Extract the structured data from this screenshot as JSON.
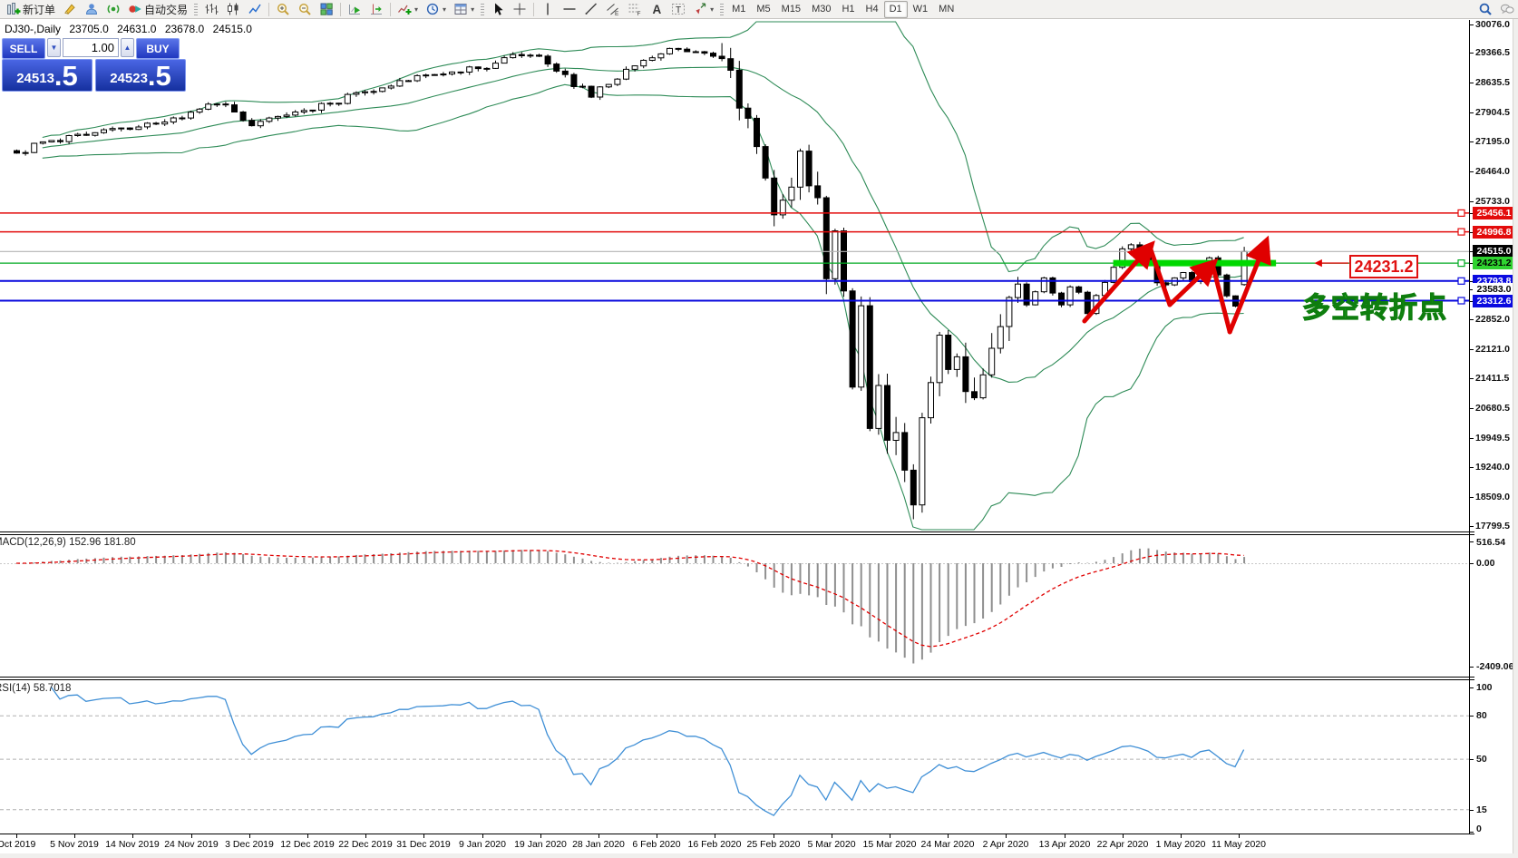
{
  "toolbar": {
    "groups": [
      [
        {
          "name": "new-order",
          "label": "新订单"
        },
        {
          "name": "metaeditor"
        },
        {
          "name": "market"
        },
        {
          "name": "signals"
        },
        {
          "name": "autotrading",
          "label": "自动交易"
        }
      ],
      [
        {
          "name": "bar-chart"
        },
        {
          "name": "candlestick-chart"
        },
        {
          "name": "line-chart"
        }
      ],
      [
        {
          "name": "zoom-in"
        },
        {
          "name": "zoom-out"
        },
        {
          "name": "tile-windows"
        }
      ],
      [
        {
          "name": "auto-scroll"
        },
        {
          "name": "chart-shift"
        }
      ],
      [
        {
          "name": "indicators",
          "dropdown": true
        },
        {
          "name": "periods",
          "dropdown": true
        },
        {
          "name": "templates",
          "dropdown": true
        }
      ],
      [
        {
          "name": "cursor"
        },
        {
          "name": "crosshair"
        }
      ],
      [
        {
          "name": "vertical-line"
        },
        {
          "name": "horizontal-line"
        },
        {
          "name": "trendline"
        },
        {
          "name": "equidistant-channel"
        },
        {
          "name": "fibonacci"
        },
        {
          "name": "text"
        },
        {
          "name": "text-label"
        },
        {
          "name": "arrows",
          "dropdown": true
        }
      ]
    ],
    "timeframes": [
      "M1",
      "M5",
      "M15",
      "M30",
      "H1",
      "H4",
      "D1",
      "W1",
      "MN"
    ],
    "active_timeframe": "D1",
    "right_icons": [
      "search",
      "chat"
    ]
  },
  "chart_header": {
    "symbol": "DJ30-,Daily",
    "open": "23705.0",
    "high": "24631.0",
    "low": "23678.0",
    "close": "24515.0"
  },
  "trade_panel": {
    "sell_label": "SELL",
    "buy_label": "BUY",
    "volume": "1.00",
    "sell_price_main": "24513",
    "sell_price_big": ".5",
    "buy_price_main": "24523",
    "buy_price_big": ".5"
  },
  "price_axis": {
    "ticks": [
      "30076.0",
      "29366.5",
      "28635.5",
      "27904.5",
      "27195.0",
      "26464.0",
      "25733.0",
      "22852.0",
      "22121.0",
      "21411.5",
      "20680.5",
      "19949.5",
      "19240.0",
      "18509.0",
      "17799.5"
    ],
    "markers": [
      {
        "text": "25456.1",
        "price": 25456.1,
        "bg": "#e30b0b",
        "fg": "#ffffff",
        "line": "#e30b0b",
        "width": 1.5,
        "handle": true
      },
      {
        "text": "24996.8",
        "price": 24996.8,
        "bg": "#e30b0b",
        "fg": "#ffffff",
        "line": "#e30b0b",
        "width": 1.5,
        "handle": true
      },
      {
        "text": "24515.0",
        "price": 24515.0,
        "bg": "#000000",
        "fg": "#ffffff",
        "line": "#b4b4b4",
        "width": 1.2,
        "handle": false
      },
      {
        "text": "24231.2",
        "price": 24231.2,
        "bg": "#2fd330",
        "fg": "#000000",
        "line": "#00aa22",
        "width": 1.2,
        "handle": true
      },
      {
        "text": "23793.8",
        "price": 23793.8,
        "bg": "#0a0ae0",
        "fg": "#ffffff",
        "line": "#0808dd",
        "width": 2,
        "handle": true
      },
      {
        "text": "23583.0",
        "price": 23583.0,
        "bg": "#ffffff",
        "fg": "#000000",
        "line": null,
        "width": 0,
        "handle": false
      },
      {
        "text": "23312.6",
        "price": 23312.6,
        "bg": "#0a0ae0",
        "fg": "#ffffff",
        "line": "#0808dd",
        "width": 2,
        "handle": true
      }
    ]
  },
  "macd_panel": {
    "label": "MACD(12,26,9) 152.96 181.80",
    "axis": [
      {
        "text": "516.54",
        "value": 516.54
      },
      {
        "text": "0.00",
        "value": 0
      },
      {
        "text": "-2409.06",
        "value": -2409.06
      }
    ]
  },
  "rsi_panel": {
    "label": "RSI(14) 58.7018",
    "axis": [
      {
        "text": "100",
        "value": 100
      },
      {
        "text": "80",
        "value": 80
      },
      {
        "text": "50",
        "value": 50
      },
      {
        "text": "15",
        "value": 15
      },
      {
        "text": "0",
        "value": 0
      }
    ],
    "grid_levels": [
      80,
      50,
      15
    ]
  },
  "date_axis": {
    "labels": [
      "Oct 2019",
      "5 Nov 2019",
      "14 Nov 2019",
      "24 Nov 2019",
      "3 Dec 2019",
      "12 Dec 2019",
      "22 Dec 2019",
      "31 Dec 2019",
      "9 Jan 2020",
      "19 Jan 2020",
      "28 Jan 2020",
      "6 Feb 2020",
      "16 Feb 2020",
      "25 Feb 2020",
      "5 Mar 2020",
      "15 Mar 2020",
      "24 Mar 2020",
      "2 Apr 2020",
      "13 Apr 2020",
      "22 Apr 2020",
      "1 May 2020",
      "11 May 2020"
    ]
  },
  "annotations": {
    "price_box_text": "24231.2",
    "turning_point_text": "多空转折点",
    "highlight_band": {
      "price": 24231.2,
      "bar_from": 126,
      "bar_to": 144.7,
      "color": "#00d800"
    },
    "arrow_zigzag": {
      "color": "#e00000",
      "points_bar_price": [
        [
          122.7,
          22815
        ],
        [
          130.2,
          24633
        ],
        [
          132.5,
          23214
        ],
        [
          137.4,
          24212
        ],
        [
          139.4,
          22549
        ],
        [
          143.5,
          24722
        ]
      ]
    }
  },
  "chart_data": {
    "type": "candlestick",
    "symbol": "DJ30-",
    "timeframe": "Daily",
    "y_range": [
      17799.5,
      30076.0
    ],
    "x_range": [
      "Oct 2019",
      "11 May 2020"
    ],
    "bars": 142,
    "last_bar_ohlc": [
      23705.0,
      24631.0,
      23678.0,
      24515.0
    ],
    "close_path": [
      [
        0,
        26920
      ],
      [
        4,
        27230
      ],
      [
        9,
        27420
      ],
      [
        14,
        27560
      ],
      [
        19,
        27780
      ],
      [
        23,
        28120
      ],
      [
        27,
        27590
      ],
      [
        31,
        27850
      ],
      [
        36,
        28140
      ],
      [
        40,
        28420
      ],
      [
        43,
        28560
      ],
      [
        47,
        28830
      ],
      [
        51,
        28900
      ],
      [
        55,
        29120
      ],
      [
        57,
        29330
      ],
      [
        60,
        29290
      ],
      [
        63,
        28840
      ],
      [
        66,
        28290
      ],
      [
        69,
        28730
      ],
      [
        72,
        29190
      ],
      [
        75,
        29480
      ],
      [
        78,
        29400
      ],
      [
        81,
        29230
      ],
      [
        83,
        28020
      ],
      [
        85,
        27080
      ],
      [
        87,
        25410
      ],
      [
        88,
        25770
      ],
      [
        89,
        26090
      ],
      [
        90,
        26970
      ],
      [
        91,
        26120
      ],
      [
        92,
        25830
      ],
      [
        93,
        23850
      ],
      [
        94,
        25020
      ],
      [
        95,
        23550
      ],
      [
        96,
        21200
      ],
      [
        97,
        23190
      ],
      [
        98,
        20190
      ],
      [
        99,
        21240
      ],
      [
        100,
        19900
      ],
      [
        101,
        20090
      ],
      [
        102,
        19170
      ],
      [
        103,
        18320
      ],
      [
        104,
        20450
      ],
      [
        105,
        21310
      ],
      [
        106,
        22470
      ],
      [
        107,
        21630
      ],
      [
        108,
        21940
      ],
      [
        109,
        21090
      ],
      [
        110,
        20940
      ],
      [
        111,
        21500
      ],
      [
        112,
        22150
      ],
      [
        113,
        22680
      ],
      [
        114,
        23390
      ],
      [
        115,
        23720
      ],
      [
        116,
        23210
      ],
      [
        117,
        23530
      ],
      [
        118,
        23870
      ],
      [
        119,
        23500
      ],
      [
        120,
        23210
      ],
      [
        121,
        23650
      ],
      [
        122,
        23520
      ],
      [
        123,
        23000
      ],
      [
        124,
        23440
      ],
      [
        125,
        23760
      ],
      [
        126,
        24130
      ],
      [
        127,
        24580
      ],
      [
        128,
        24680
      ],
      [
        129,
        24500
      ],
      [
        130,
        24260
      ],
      [
        131,
        23750
      ],
      [
        132,
        23700
      ],
      [
        133,
        23870
      ],
      [
        134,
        24000
      ],
      [
        135,
        23780
      ],
      [
        136,
        24230
      ],
      [
        137,
        24360
      ],
      [
        138,
        23940
      ],
      [
        139,
        23430
      ],
      [
        140,
        23180
      ],
      [
        141,
        24515
      ]
    ],
    "bollinger": {
      "period": 20,
      "deviation": 2,
      "color": "#2e8b57"
    },
    "macd": {
      "fast": 12,
      "slow": 26,
      "signal": 9,
      "current": 152.96,
      "current_signal": 181.8,
      "axis_max": 516.54,
      "axis_min": -2409.06
    },
    "rsi": {
      "period": 14,
      "current": 58.7018
    }
  }
}
